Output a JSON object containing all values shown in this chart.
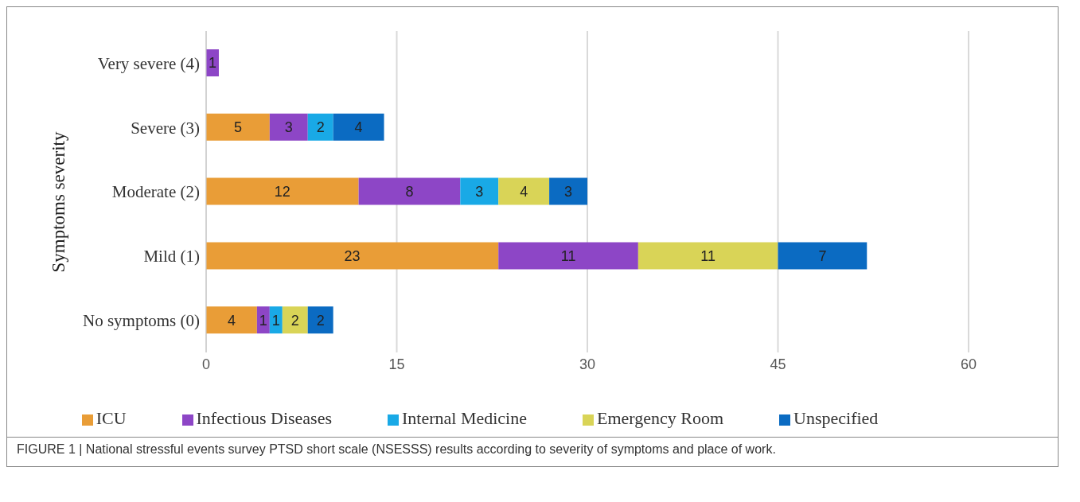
{
  "chart_data": {
    "type": "bar",
    "orientation": "horizontal",
    "stacked": true,
    "ylabel": "Symptoms severity",
    "categories": [
      "Very severe (4)",
      "Severe (3)",
      "Moderate (2)",
      "Mild (1)",
      "No symptoms (0)"
    ],
    "series": [
      {
        "name": "ICU",
        "color": "#e99d37",
        "values": [
          null,
          5,
          12,
          23,
          4
        ]
      },
      {
        "name": "Infectious Diseases",
        "color": "#8d46c6",
        "values": [
          1,
          3,
          8,
          11,
          1
        ]
      },
      {
        "name": "Internal Medicine",
        "color": "#19a9e6",
        "values": [
          null,
          2,
          3,
          null,
          1
        ]
      },
      {
        "name": "Emergency Room",
        "color": "#d9d457",
        "values": [
          null,
          null,
          4,
          11,
          2
        ]
      },
      {
        "name": "Unspecified",
        "color": "#0b6bc2",
        "values": [
          null,
          4,
          3,
          7,
          2
        ]
      }
    ],
    "xlim": [
      0,
      60
    ],
    "xticks": [
      0,
      15,
      30,
      45,
      60
    ],
    "grid": "x",
    "legend": "bottom",
    "data_labels": true,
    "annotations": [
      "FIGURE 1 | National stressful events survey PTSD short scale (NSESSS) results according to severity of symptoms and place of work."
    ]
  }
}
